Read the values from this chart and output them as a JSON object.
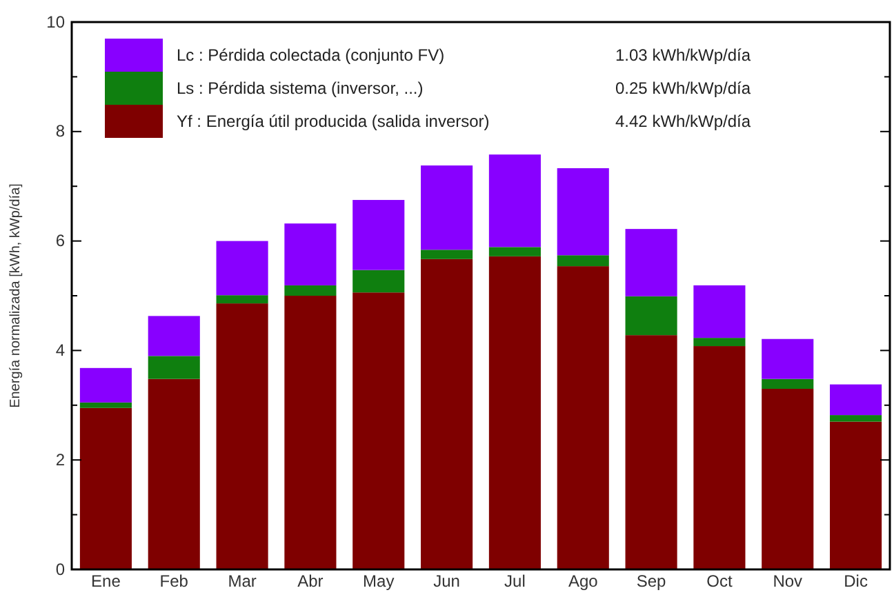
{
  "chart_data": {
    "type": "bar",
    "stacked": true,
    "ylabel": "Energía  normalizada  [kWh, kWp/día]",
    "categories": [
      "Ene",
      "Feb",
      "Mar",
      "Abr",
      "May",
      "Jun",
      "Jul",
      "Ago",
      "Sep",
      "Oct",
      "Nov",
      "Dic"
    ],
    "series": [
      {
        "name": "Yf : Energía útil producida  (salida inversor)",
        "color": "#7f0000",
        "values": [
          2.95,
          3.48,
          4.86,
          5.0,
          5.06,
          5.67,
          5.72,
          5.54,
          4.28,
          4.08,
          3.3,
          2.7
        ]
      },
      {
        "name": "Ls : Pérdida sistema  (inversor, ...)",
        "color": "#0f7f0f",
        "values": [
          0.1,
          0.42,
          0.15,
          0.19,
          0.41,
          0.17,
          0.17,
          0.2,
          0.71,
          0.15,
          0.18,
          0.12
        ]
      },
      {
        "name": "Lc : Pérdida colectada (conjunto FV)",
        "color": "#8800ff",
        "values": [
          0.63,
          0.73,
          0.99,
          1.13,
          1.28,
          1.54,
          1.69,
          1.59,
          1.23,
          0.96,
          0.73,
          0.56
        ]
      }
    ],
    "annotations": [
      "1.03 kWh/kWp/día",
      "0.25 kWh/kWp/día",
      "4.42 kWh/kWp/día"
    ],
    "ylim": [
      0,
      10
    ],
    "yticks": [
      0,
      {
        "value": 1,
        "label": null
      },
      2,
      {
        "value": 3,
        "label": null
      },
      4,
      {
        "value": 5,
        "label": null
      },
      6,
      {
        "value": 7,
        "label": null
      },
      8,
      {
        "value": 9,
        "label": null
      },
      10
    ],
    "legend": "top left",
    "grid": false
  }
}
